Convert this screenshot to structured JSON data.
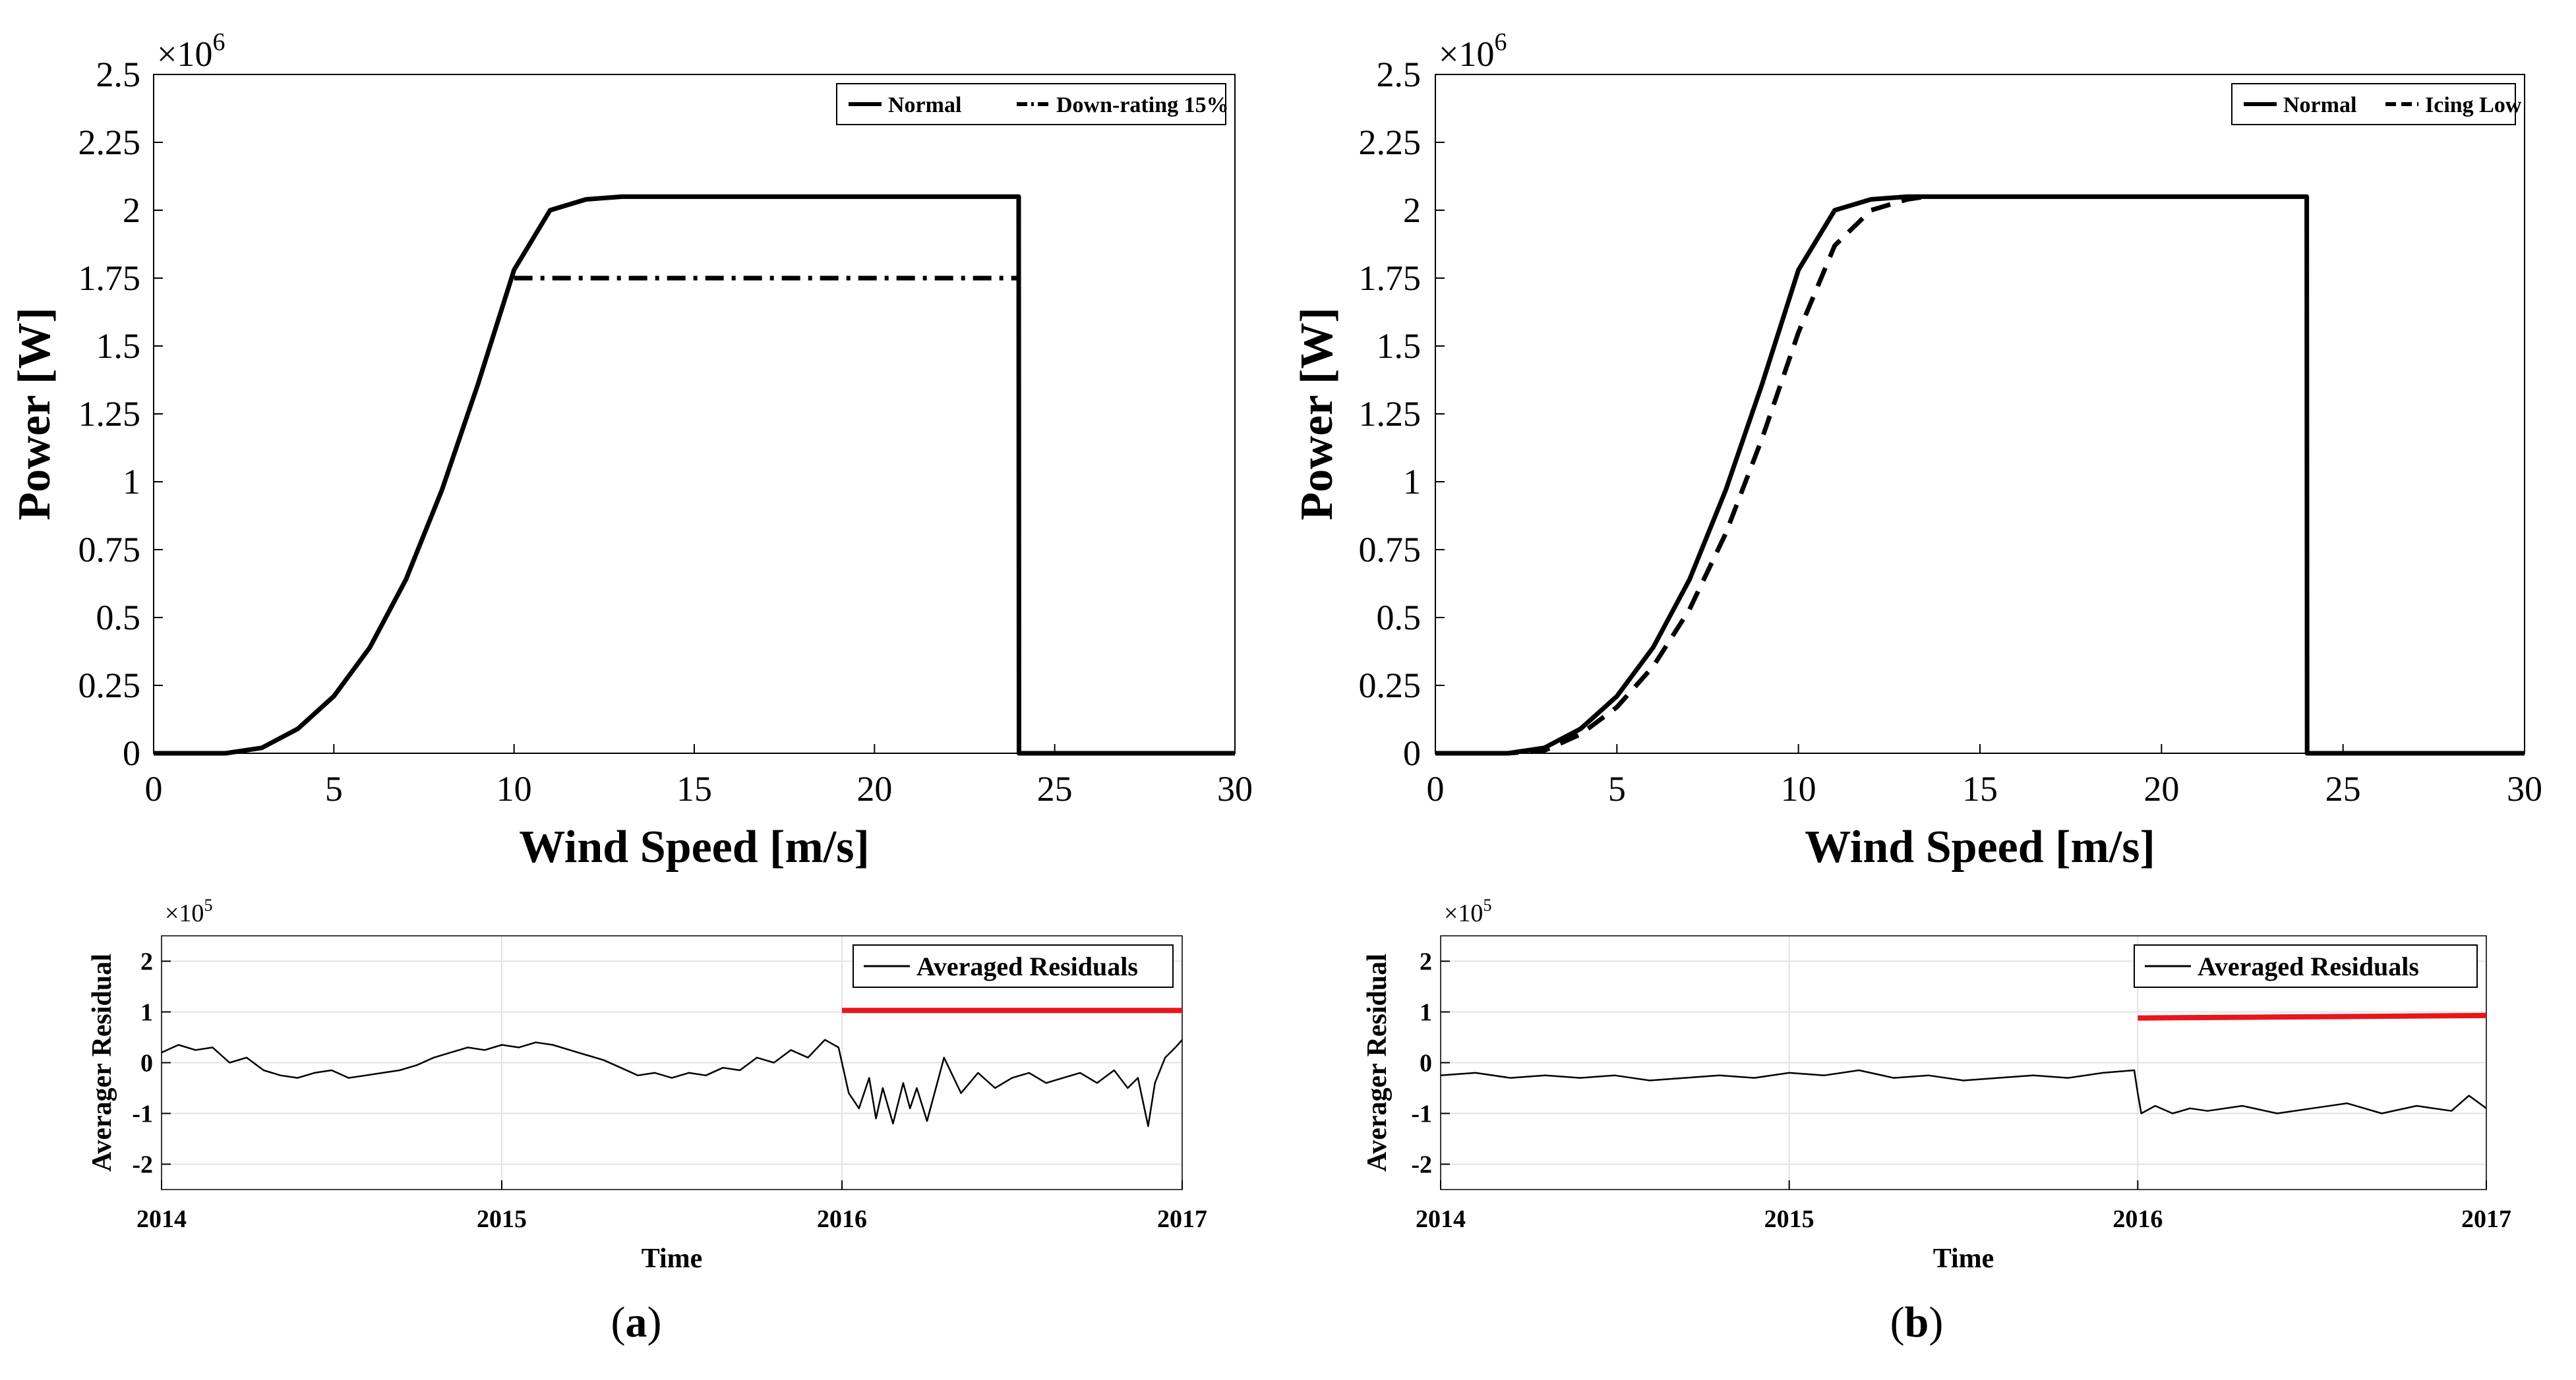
{
  "chart_data": [
    {
      "id": "power-curve-a",
      "type": "line",
      "panel": "a",
      "xlabel": "Wind Speed [m/s]",
      "ylabel": "Power [W]",
      "y_exponent_label": "×10",
      "y_exponent": "6",
      "xlim": [
        0,
        30
      ],
      "ylim": [
        0,
        2.5
      ],
      "x_ticks": [
        "0",
        "5",
        "10",
        "15",
        "20",
        "25",
        "30"
      ],
      "y_ticks": [
        "0",
        "0.25",
        "0.5",
        "0.75",
        "1",
        "1.25",
        "1.5",
        "1.75",
        "2",
        "2.25",
        "2.5"
      ],
      "legend_position": "top-right",
      "series": [
        {
          "name": "Normal",
          "style": "solid",
          "color": "#000000",
          "x": [
            0,
            1,
            2,
            3,
            4,
            5,
            6,
            7,
            8,
            9,
            10,
            11,
            12,
            13,
            14,
            24,
            24.01,
            30
          ],
          "y": [
            0,
            0,
            0,
            0.02,
            0.09,
            0.21,
            0.39,
            0.64,
            0.97,
            1.36,
            1.78,
            2.0,
            2.04,
            2.05,
            2.05,
            2.05,
            0,
            0
          ]
        },
        {
          "name": "Down-rating 15%",
          "style": "dashdot",
          "color": "#000000",
          "x": [
            10,
            24
          ],
          "y": [
            1.75,
            1.75
          ]
        }
      ]
    },
    {
      "id": "power-curve-b",
      "type": "line",
      "panel": "b",
      "xlabel": "Wind Speed [m/s]",
      "ylabel": "Power [W]",
      "y_exponent_label": "×10",
      "y_exponent": "6",
      "xlim": [
        0,
        30
      ],
      "ylim": [
        0,
        2.5
      ],
      "x_ticks": [
        "0",
        "5",
        "10",
        "15",
        "20",
        "25",
        "30"
      ],
      "y_ticks": [
        "0",
        "0.25",
        "0.5",
        "0.75",
        "1",
        "1.25",
        "1.5",
        "1.75",
        "2",
        "2.25",
        "2.5"
      ],
      "legend_position": "top-right",
      "series": [
        {
          "name": "Normal",
          "style": "solid",
          "color": "#000000",
          "x": [
            0,
            1,
            2,
            3,
            4,
            5,
            6,
            7,
            8,
            9,
            10,
            11,
            12,
            13,
            14,
            24,
            24.01,
            30
          ],
          "y": [
            0,
            0,
            0,
            0.02,
            0.09,
            0.21,
            0.39,
            0.64,
            0.97,
            1.36,
            1.78,
            2.0,
            2.04,
            2.05,
            2.05,
            2.05,
            0,
            0
          ]
        },
        {
          "name": "Icing Low",
          "style": "dashed",
          "color": "#000000",
          "x": [
            0,
            1,
            2,
            3,
            4,
            5,
            6,
            7,
            8,
            9,
            10,
            11,
            12,
            13,
            13.5
          ],
          "y": [
            0,
            0,
            0,
            0.01,
            0.07,
            0.17,
            0.32,
            0.53,
            0.81,
            1.16,
            1.55,
            1.87,
            2.0,
            2.04,
            2.05
          ]
        }
      ]
    },
    {
      "id": "residuals-a",
      "type": "line",
      "panel": "a",
      "xlabel": "Time",
      "ylabel": "Averager Residual",
      "y_exponent_label": "×10",
      "y_exponent": "5",
      "xlim": [
        2014,
        2017
      ],
      "ylim": [
        -2.5,
        2.5
      ],
      "x_ticks": [
        "2014",
        "2015",
        "2016",
        "2017"
      ],
      "y_ticks": [
        "-2",
        "-1",
        "0",
        "1",
        "2"
      ],
      "grid": true,
      "legend_position": "top-right",
      "threshold": {
        "x": [
          2016,
          2017
        ],
        "y": [
          1.03,
          1.03
        ],
        "color": "#e8161b"
      },
      "series": [
        {
          "name": "Averaged Residuals",
          "style": "solid",
          "color": "#000000",
          "x": [
            2014.0,
            2014.05,
            2014.1,
            2014.15,
            2014.2,
            2014.25,
            2014.3,
            2014.35,
            2014.4,
            2014.45,
            2014.5,
            2014.55,
            2014.6,
            2014.65,
            2014.7,
            2014.75,
            2014.8,
            2014.85,
            2014.9,
            2014.95,
            2015.0,
            2015.05,
            2015.1,
            2015.15,
            2015.2,
            2015.25,
            2015.3,
            2015.35,
            2015.4,
            2015.45,
            2015.5,
            2015.55,
            2015.6,
            2015.65,
            2015.7,
            2015.75,
            2015.8,
            2015.85,
            2015.9,
            2015.95,
            2015.99,
            2016.02,
            2016.05,
            2016.08,
            2016.1,
            2016.12,
            2016.15,
            2016.18,
            2016.2,
            2016.22,
            2016.25,
            2016.28,
            2016.3,
            2016.35,
            2016.4,
            2016.45,
            2016.5,
            2016.55,
            2016.6,
            2016.65,
            2016.7,
            2016.75,
            2016.8,
            2016.84,
            2016.87,
            2016.9,
            2016.92,
            2016.95,
            2016.98,
            2017.0
          ],
          "y": [
            0.2,
            0.35,
            0.25,
            0.3,
            0.0,
            0.1,
            -0.15,
            -0.25,
            -0.3,
            -0.2,
            -0.15,
            -0.3,
            -0.25,
            -0.2,
            -0.15,
            -0.05,
            0.1,
            0.2,
            0.3,
            0.25,
            0.35,
            0.3,
            0.4,
            0.35,
            0.25,
            0.15,
            0.05,
            -0.1,
            -0.25,
            -0.2,
            -0.3,
            -0.2,
            -0.25,
            -0.1,
            -0.15,
            0.1,
            0.0,
            0.25,
            0.1,
            0.45,
            0.3,
            -0.6,
            -0.9,
            -0.3,
            -1.1,
            -0.5,
            -1.2,
            -0.4,
            -0.9,
            -0.5,
            -1.15,
            -0.4,
            0.1,
            -0.6,
            -0.2,
            -0.5,
            -0.3,
            -0.2,
            -0.4,
            -0.3,
            -0.2,
            -0.4,
            -0.15,
            -0.5,
            -0.3,
            -1.25,
            -0.4,
            0.1,
            0.3,
            0.45
          ]
        }
      ]
    },
    {
      "id": "residuals-b",
      "type": "line",
      "panel": "b",
      "xlabel": "Time",
      "ylabel": "Averager Residual",
      "y_exponent_label": "×10",
      "y_exponent": "5",
      "xlim": [
        2014,
        2017
      ],
      "ylim": [
        -2.5,
        2.5
      ],
      "x_ticks": [
        "2014",
        "2015",
        "2016",
        "2017"
      ],
      "y_ticks": [
        "-2",
        "-1",
        "0",
        "1",
        "2"
      ],
      "grid": true,
      "legend_position": "top-right",
      "threshold": {
        "x": [
          2016,
          2017
        ],
        "y": [
          0.88,
          0.93
        ],
        "color": "#e8161b"
      },
      "series": [
        {
          "name": "Averaged Residuals",
          "style": "solid",
          "color": "#000000",
          "x": [
            2014.0,
            2014.1,
            2014.2,
            2014.3,
            2014.4,
            2014.5,
            2014.6,
            2014.7,
            2014.8,
            2014.9,
            2015.0,
            2015.1,
            2015.2,
            2015.3,
            2015.4,
            2015.5,
            2015.6,
            2015.7,
            2015.8,
            2015.9,
            2015.99,
            2016.0,
            2016.01,
            2016.05,
            2016.1,
            2016.15,
            2016.2,
            2016.3,
            2016.4,
            2016.5,
            2016.6,
            2016.7,
            2016.8,
            2016.9,
            2016.95,
            2017.0
          ],
          "y": [
            -0.25,
            -0.2,
            -0.3,
            -0.25,
            -0.3,
            -0.25,
            -0.35,
            -0.3,
            -0.25,
            -0.3,
            -0.2,
            -0.25,
            -0.15,
            -0.3,
            -0.25,
            -0.35,
            -0.3,
            -0.25,
            -0.3,
            -0.2,
            -0.15,
            -0.6,
            -1.0,
            -0.85,
            -1.0,
            -0.9,
            -0.95,
            -0.85,
            -1.0,
            -0.9,
            -0.8,
            -1.0,
            -0.85,
            -0.95,
            -0.65,
            -0.9
          ]
        }
      ]
    }
  ],
  "panel_labels": [
    {
      "open": "(",
      "letter": "a",
      "close": ")"
    },
    {
      "open": "(",
      "letter": "b",
      "close": ")"
    }
  ]
}
